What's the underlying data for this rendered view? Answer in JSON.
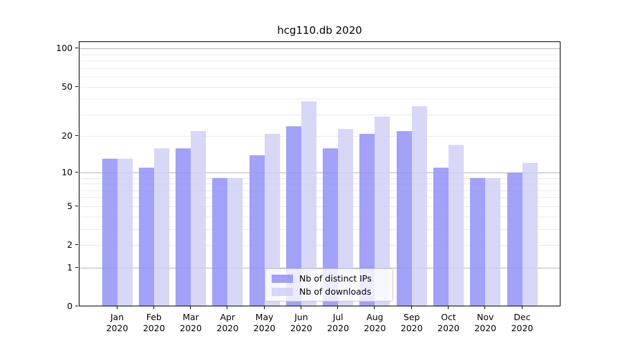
{
  "chart_data": {
    "type": "bar",
    "title": "hcg110.db 2020",
    "categories": [
      "Jan",
      "Feb",
      "Mar",
      "Apr",
      "May",
      "Jun",
      "Jul",
      "Aug",
      "Sep",
      "Oct",
      "Nov",
      "Dec"
    ],
    "x_year_label": "2020",
    "series": [
      {
        "name": "Nb of distinct IPs",
        "color": "rgba(146,146,247,0.85)",
        "values": [
          13,
          11,
          16,
          9,
          14,
          24,
          16,
          21,
          22,
          11,
          9,
          10
        ]
      },
      {
        "name": "Nb of downloads",
        "color": "rgba(208,208,247,0.85)",
        "values": [
          13,
          16,
          22,
          9,
          21,
          38,
          23,
          29,
          35,
          17,
          9,
          12
        ]
      }
    ],
    "y_axis": {
      "scale": "log1p",
      "ticks": [
        0,
        1,
        2,
        5,
        10,
        20,
        50,
        100
      ],
      "major_gridlines": [
        1,
        10,
        100
      ],
      "minor_gridlines": [
        2,
        3,
        4,
        5,
        6,
        7,
        8,
        9,
        20,
        30,
        40,
        50,
        60,
        70,
        80,
        90
      ],
      "range": [
        0,
        113.6
      ]
    },
    "legend": {
      "position": "lower center"
    },
    "grid": true,
    "colors": {
      "major_grid": "#b4b4b4",
      "minor_grid": "#eaeaea",
      "axis": "#000000",
      "background": "#ffffff"
    }
  }
}
